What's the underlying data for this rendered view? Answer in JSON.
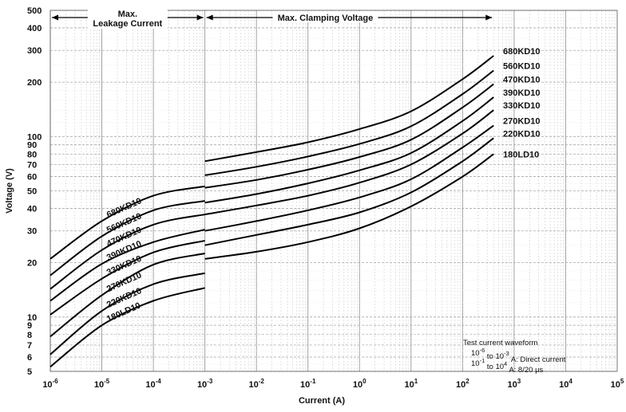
{
  "chart_data": {
    "type": "line",
    "title": "",
    "xlabel": "Current (A)",
    "ylabel": "Voltage  (V)",
    "xscale": "log",
    "yscale": "log",
    "xlim": [
      1e-06,
      100000
    ],
    "ylim": [
      5,
      500
    ],
    "grid": true,
    "x_ticks": [
      {
        "base": "10",
        "exp": "-6"
      },
      {
        "base": "10",
        "exp": "-5"
      },
      {
        "base": "10",
        "exp": "-4"
      },
      {
        "base": "10",
        "exp": "-3"
      },
      {
        "base": "10",
        "exp": "-2"
      },
      {
        "base": "10",
        "exp": "-1"
      },
      {
        "base": "10",
        "exp": "0"
      },
      {
        "base": "10",
        "exp": "1"
      },
      {
        "base": "10",
        "exp": "2"
      },
      {
        "base": "10",
        "exp": "3"
      },
      {
        "base": "10",
        "exp": "4"
      },
      {
        "base": "10",
        "exp": "5"
      }
    ],
    "y_ticks": [
      "5",
      "6",
      "7",
      "8",
      "9",
      "10",
      "20",
      "30",
      "40",
      "50",
      "60",
      "70",
      "80",
      "90",
      "100",
      "200",
      "300",
      "400",
      "500"
    ],
    "regions": [
      {
        "label_line1": "Max.",
        "label_line2": "Leakage Current",
        "from": 1e-06,
        "to": 0.001
      },
      {
        "label_line1": "Max. Clamping Voltage",
        "label_line2": "",
        "from": 0.001,
        "to": 400
      }
    ],
    "series": [
      {
        "name": "180LD10",
        "leak_label": "180LD10",
        "leakage": {
          "x": [
            1e-06,
            1e-05,
            0.0001,
            0.001
          ],
          "y": [
            5.3,
            9.0,
            12.3,
            14.5
          ]
        },
        "clamping": {
          "x": [
            0.001,
            0.01,
            0.1,
            1,
            10,
            100,
            400
          ],
          "y": [
            21,
            23,
            26,
            31,
            41,
            60,
            80
          ]
        }
      },
      {
        "name": "220KD10",
        "leak_label": "220KD10",
        "leakage": {
          "x": [
            1e-06,
            1e-05,
            0.0001,
            0.001
          ],
          "y": [
            6.2,
            10.8,
            15.2,
            17.5
          ]
        },
        "clamping": {
          "x": [
            0.001,
            0.01,
            0.1,
            1,
            10,
            100,
            400
          ],
          "y": [
            25,
            28.5,
            32.5,
            38,
            49,
            73,
            98
          ]
        }
      },
      {
        "name": "270KD10",
        "leak_label": "270KD10",
        "leakage": {
          "x": [
            1e-06,
            1e-05,
            0.0001,
            0.001
          ],
          "y": [
            7.8,
            13.2,
            19.5,
            22.5
          ]
        },
        "clamping": {
          "x": [
            0.001,
            0.01,
            0.1,
            1,
            10,
            100,
            400
          ],
          "y": [
            30,
            34,
            39,
            46,
            58,
            87,
            115
          ]
        }
      },
      {
        "name": "330KD10",
        "leak_label": "330KD10",
        "leakage": {
          "x": [
            1e-06,
            1e-05,
            0.0001,
            0.001
          ],
          "y": [
            10.3,
            16.3,
            22.8,
            26.5
          ]
        },
        "clamping": {
          "x": [
            0.001,
            0.01,
            0.1,
            1,
            10,
            100,
            400
          ],
          "y": [
            37,
            41.5,
            47,
            55.5,
            70,
            104,
            140
          ]
        }
      },
      {
        "name": "390KD10",
        "leak_label": "390KD10",
        "leakage": {
          "x": [
            1e-06,
            1e-05,
            0.0001,
            0.001
          ],
          "y": [
            12.3,
            19.7,
            26,
            30.5
          ]
        },
        "clamping": {
          "x": [
            0.001,
            0.01,
            0.1,
            1,
            10,
            100,
            400
          ],
          "y": [
            43,
            48,
            55,
            65,
            81,
            122,
            165
          ]
        }
      },
      {
        "name": "470KD10",
        "leak_label": "470KD10",
        "leakage": {
          "x": [
            1e-06,
            1e-05,
            0.0001,
            0.001
          ],
          "y": [
            14.3,
            23.5,
            32.5,
            37
          ]
        },
        "clamping": {
          "x": [
            0.001,
            0.01,
            0.1,
            1,
            10,
            100,
            400
          ],
          "y": [
            52,
            57.5,
            65.5,
            77,
            96,
            145,
            195
          ]
        }
      },
      {
        "name": "560KD10",
        "leak_label": "560KD10",
        "leakage": {
          "x": [
            1e-06,
            1e-05,
            0.0001,
            0.001
          ],
          "y": [
            17,
            28,
            39,
            44
          ]
        },
        "clamping": {
          "x": [
            0.001,
            0.01,
            0.1,
            1,
            10,
            100,
            400
          ],
          "y": [
            61,
            68,
            77.5,
            91,
            114,
            172,
            232
          ]
        }
      },
      {
        "name": "680KD10",
        "leak_label": "680KD10",
        "leakage": {
          "x": [
            1e-06,
            1e-05,
            0.0001,
            0.001
          ],
          "y": [
            21,
            34,
            47,
            53
          ]
        },
        "clamping": {
          "x": [
            0.001,
            0.01,
            0.1,
            1,
            10,
            100,
            400
          ],
          "y": [
            73,
            82,
            93,
            110,
            138,
            208,
            280
          ]
        }
      }
    ],
    "note": {
      "title": "Test current waveform",
      "line1": {
        "from_base": "10",
        "from_exp": "-6",
        "sep": "to",
        "to_base": "10",
        "to_exp": "-3",
        "tail": "A:  Direct current"
      },
      "line2": {
        "from_base": "10",
        "from_exp": "-1",
        "sep": "to",
        "to_base": "10",
        "to_exp": "4",
        "tail": "A:  8/20 μs"
      }
    }
  }
}
